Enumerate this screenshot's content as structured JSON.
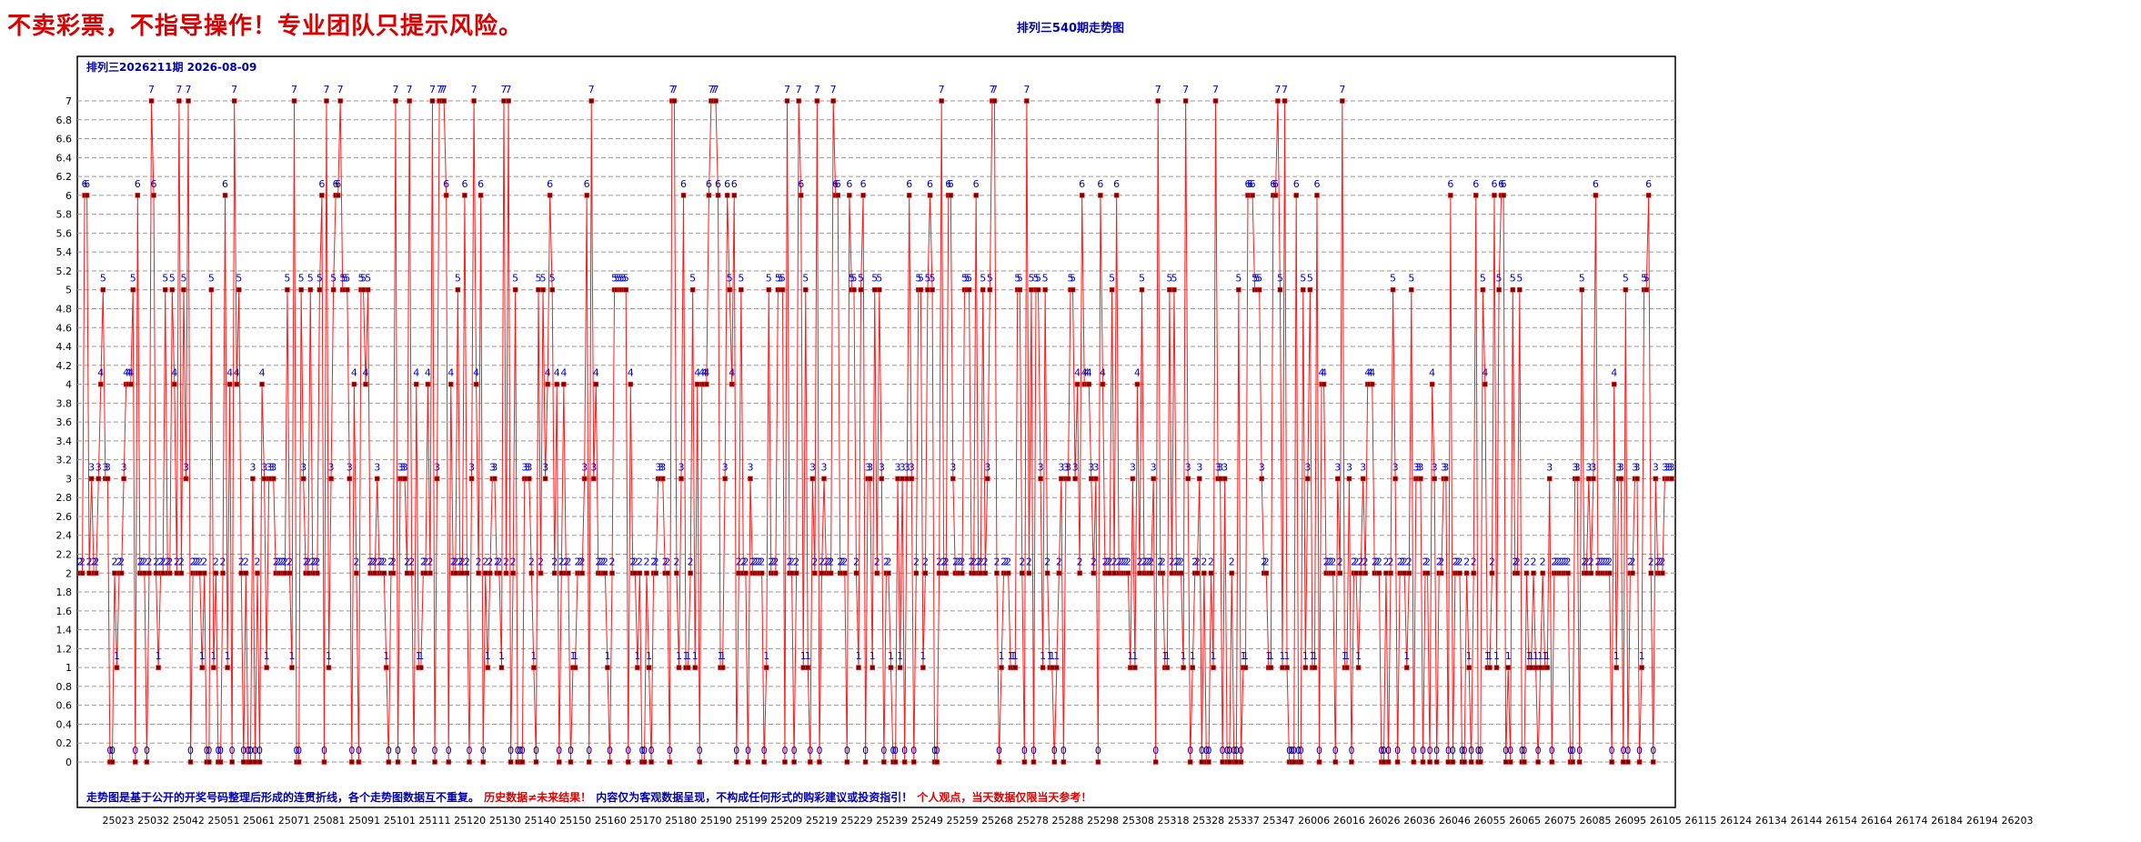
{
  "banner": "不卖彩票，不指导操作！专业团队只提示风险。",
  "title": "排列三540期走势图",
  "issue_label": "排列三2026211期 2026-08-09",
  "footer": {
    "blue1": "走势图是基于公开的开奖号码整理后形成的连贯折线，各个走势图数据互不重复。",
    "red1": "历史数据≠未来结果！",
    "blue2": "内容仅为客观数据呈现，不构成任何形式的购彩建议或投资指引！",
    "red2": "个人观点，当天数据仅限当天参考！"
  },
  "colors": {
    "line": "#ff1a1a",
    "marker": "#7a0000",
    "label": "#0000c0",
    "banner": "#d80000",
    "title": "#0000b0"
  },
  "chart_data": {
    "type": "line",
    "title": "排列三540期走势图",
    "ylim": [
      0,
      7
    ],
    "yticks": [
      0,
      0.2,
      0.4,
      0.6,
      0.8,
      1,
      1.2,
      1.4,
      1.6,
      1.8,
      2,
      2.2,
      2.4,
      2.6,
      2.8,
      3,
      3.2,
      3.4,
      3.6,
      3.8,
      4,
      4.2,
      4.4,
      4.6,
      4.8,
      5,
      5.2,
      5.4,
      5.6,
      5.8,
      6,
      6.2,
      6.4,
      6.6,
      6.8,
      7
    ],
    "grid": true,
    "x_tick_labels": [
      "25023",
      "25032",
      "25042",
      "25051",
      "25061",
      "25071",
      "25081",
      "25091",
      "25101",
      "25111",
      "25120",
      "25130",
      "25140",
      "25150",
      "25160",
      "25170",
      "25180",
      "25190",
      "25199",
      "25209",
      "25219",
      "25229",
      "25239",
      "25249",
      "25259",
      "25268",
      "25278",
      "25288",
      "25298",
      "25308",
      "25318",
      "25328",
      "25337",
      "25347",
      "26006",
      "26016",
      "26026",
      "26036",
      "26046",
      "26055",
      "26065",
      "26075",
      "26085",
      "26095",
      "26105",
      "26115",
      "26124",
      "26134",
      "26144",
      "26154",
      "26164",
      "26174",
      "26184",
      "26194",
      "26203"
    ],
    "series": [
      {
        "values": [
          2,
          2,
          6,
          6,
          2,
          3,
          2,
          2,
          3,
          4,
          5,
          3,
          3,
          0,
          0,
          2,
          1,
          2,
          2,
          3,
          4,
          4,
          4,
          5,
          0,
          6,
          2,
          2,
          2,
          0,
          2,
          7,
          6,
          2,
          1,
          2,
          2,
          5,
          2,
          2,
          5,
          4,
          2,
          7,
          2,
          5,
          3,
          7,
          0,
          2,
          2,
          2,
          2,
          1,
          2,
          0,
          0,
          5,
          1,
          2,
          0,
          0,
          2,
          6,
          1,
          4,
          0,
          7,
          4,
          5,
          2,
          0,
          2,
          0,
          0,
          3,
          0,
          2,
          0,
          4,
          3,
          1,
          3,
          3,
          3,
          2,
          2,
          2,
          2,
          2,
          5,
          2,
          1,
          7,
          0,
          0,
          5,
          3,
          2,
          2,
          5,
          2,
          2,
          2,
          5,
          6,
          0,
          7,
          1,
          3,
          5,
          6,
          6,
          7,
          5,
          5,
          5,
          3,
          0,
          4,
          2,
          0,
          5,
          5,
          4,
          5,
          2,
          2,
          2,
          3,
          2,
          2,
          2,
          1,
          0,
          2,
          2,
          7,
          0,
          3,
          3,
          3,
          2,
          7,
          2,
          0,
          4,
          1,
          1,
          2,
          2,
          4,
          2,
          7,
          0,
          3,
          7,
          7,
          7,
          6,
          0,
          4,
          2,
          2,
          5,
          2,
          2,
          6,
          2,
          0,
          3,
          7,
          4,
          2,
          6,
          0,
          2,
          1,
          2,
          3,
          3,
          2,
          2,
          1,
          7,
          2,
          7,
          0,
          2,
          5,
          0,
          0,
          0,
          3,
          3,
          3,
          2,
          1,
          0,
          5,
          2,
          5,
          3,
          4,
          6,
          5,
          2,
          4,
          0,
          2,
          4,
          2,
          2,
          0,
          1,
          1,
          2,
          2,
          2,
          3,
          6,
          0,
          7,
          3,
          4,
          2,
          2,
          2,
          2,
          1,
          0,
          2,
          5,
          5,
          5,
          5,
          5,
          5,
          0,
          4,
          2,
          2,
          1,
          2,
          0,
          0,
          2,
          1,
          0,
          2,
          2,
          3,
          3,
          3,
          2,
          2,
          0,
          7,
          7,
          2,
          1,
          3,
          6,
          1,
          1,
          2,
          5,
          1,
          4,
          0,
          4,
          4,
          4,
          6,
          7,
          7,
          7,
          6,
          1,
          1,
          3,
          6,
          5,
          4,
          6,
          0,
          2,
          5,
          2,
          2,
          0,
          3,
          2,
          2,
          2,
          2,
          2,
          0,
          1,
          5,
          2,
          2,
          2,
          5,
          5,
          5,
          0,
          7,
          2,
          2,
          0,
          2,
          7,
          6,
          1,
          5,
          1,
          0,
          3,
          2,
          7,
          0,
          2,
          3,
          2,
          2,
          2,
          7,
          6,
          6,
          2,
          2,
          2,
          0,
          6,
          5,
          5,
          2,
          1,
          5,
          6,
          0,
          3,
          3,
          1,
          5,
          2,
          5,
          3,
          0,
          2,
          2,
          1,
          0,
          0,
          3,
          1,
          3,
          0,
          3,
          6,
          3,
          0,
          2,
          5,
          5,
          1,
          2,
          5,
          6,
          5,
          0,
          0,
          2,
          7,
          2,
          2,
          6,
          6,
          3,
          2,
          2,
          2,
          2,
          5,
          5,
          5,
          2,
          2,
          6,
          2,
          2,
          5,
          2,
          3,
          5,
          7,
          7,
          2,
          0,
          1,
          2,
          2,
          2,
          1,
          1,
          1,
          5,
          5,
          2,
          0,
          7,
          2,
          5,
          0,
          5,
          5,
          3,
          1,
          5,
          2,
          1,
          1,
          0,
          1,
          2,
          3,
          0,
          3,
          3,
          5,
          5,
          3,
          4,
          2,
          6,
          4,
          4,
          4,
          3,
          2,
          3,
          0,
          6,
          4,
          2,
          2,
          2,
          5,
          2,
          6,
          2,
          2,
          2,
          2,
          2,
          1,
          3,
          1,
          4,
          2,
          5,
          2,
          2,
          2,
          2,
          3,
          0,
          7,
          2,
          2,
          1,
          1,
          5,
          2,
          5,
          2,
          2,
          2,
          1,
          7,
          3,
          0,
          1,
          2,
          2,
          3,
          0,
          2,
          0,
          0,
          2,
          1,
          7,
          3,
          3,
          0,
          3,
          0,
          0,
          2,
          0,
          0,
          5,
          0,
          1,
          1,
          6,
          6,
          6,
          5,
          5,
          5,
          3,
          2,
          2,
          1,
          1,
          6,
          6,
          7,
          5,
          1,
          7,
          1,
          0,
          0,
          0,
          6,
          0,
          0,
          5,
          1,
          3,
          5,
          1,
          1,
          6,
          0,
          4,
          4,
          2,
          2,
          2,
          2,
          0,
          3,
          2,
          7,
          1,
          1,
          3,
          0,
          2,
          2,
          1,
          2,
          3,
          2,
          4,
          4,
          4,
          2,
          2,
          2,
          0,
          0,
          2,
          0,
          2,
          5,
          3,
          0,
          2,
          2,
          2,
          1,
          2,
          5,
          0,
          3,
          3,
          3,
          0,
          2,
          2,
          0,
          4,
          3,
          0,
          2,
          2,
          3,
          3,
          0,
          6,
          0,
          2,
          2,
          2,
          0,
          0,
          2,
          1,
          0,
          2,
          6,
          0,
          0,
          5,
          4,
          1,
          1,
          2,
          6,
          1,
          5,
          6,
          6,
          0,
          1,
          0,
          5,
          2,
          2,
          5,
          0,
          0,
          2,
          1,
          1,
          2,
          1,
          0,
          1,
          2,
          1,
          1,
          3,
          0,
          2,
          2,
          2,
          2,
          2,
          2,
          2,
          0,
          0,
          3,
          3,
          0,
          5,
          2,
          2,
          3,
          2,
          3,
          6,
          2,
          2,
          2,
          2,
          2,
          2,
          0,
          4,
          1,
          3,
          3,
          0,
          5,
          0,
          2,
          2,
          3,
          3,
          0,
          1,
          5,
          5,
          6,
          2,
          0,
          3,
          2,
          2,
          2,
          3,
          3,
          3,
          3
        ]
      }
    ]
  }
}
